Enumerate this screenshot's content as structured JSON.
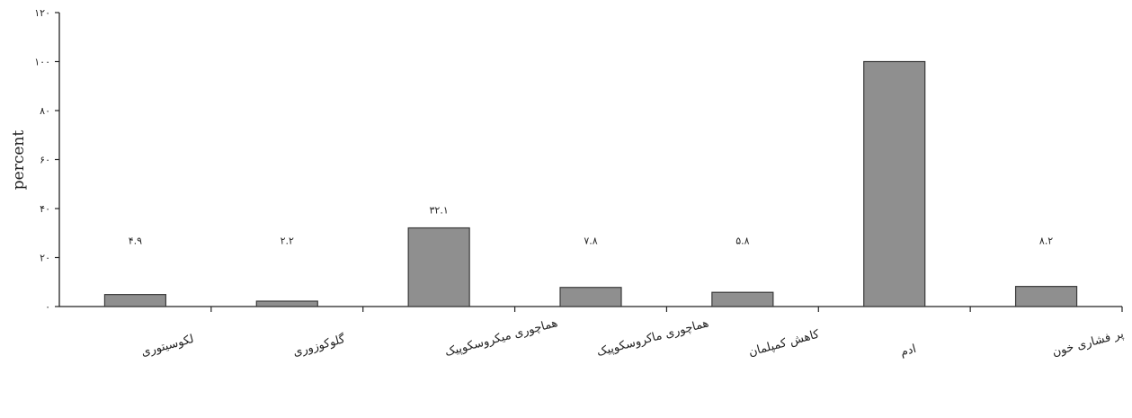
{
  "chart_data": {
    "type": "bar",
    "ylabel": "percent",
    "ylim": [
      0,
      120
    ],
    "yticks": [
      "۰",
      "۲۰",
      "۴۰",
      "۶۰",
      "۸۰",
      "۱۰۰",
      "۱۲۰"
    ],
    "categories": [
      "لکوسیتوری",
      "گلوکوزوری",
      "هماچوری میکروسکوپیک",
      "هماچوری ماکروسکوپیک",
      "کاهش کمپلمان",
      "ادم",
      "پر فشاری خون"
    ],
    "values": [
      4.9,
      2.2,
      32.1,
      7.8,
      5.8,
      100,
      8.2
    ],
    "data_labels": [
      "۴.۹",
      "۲.۲",
      "۳۲.۱",
      "۷.۸",
      "۵.۸",
      "",
      "۸.۲"
    ],
    "grid": false,
    "colors": {
      "bar": "#8f8f8f",
      "bar_edge": "#3a3a3a",
      "axis": "#222222"
    }
  }
}
